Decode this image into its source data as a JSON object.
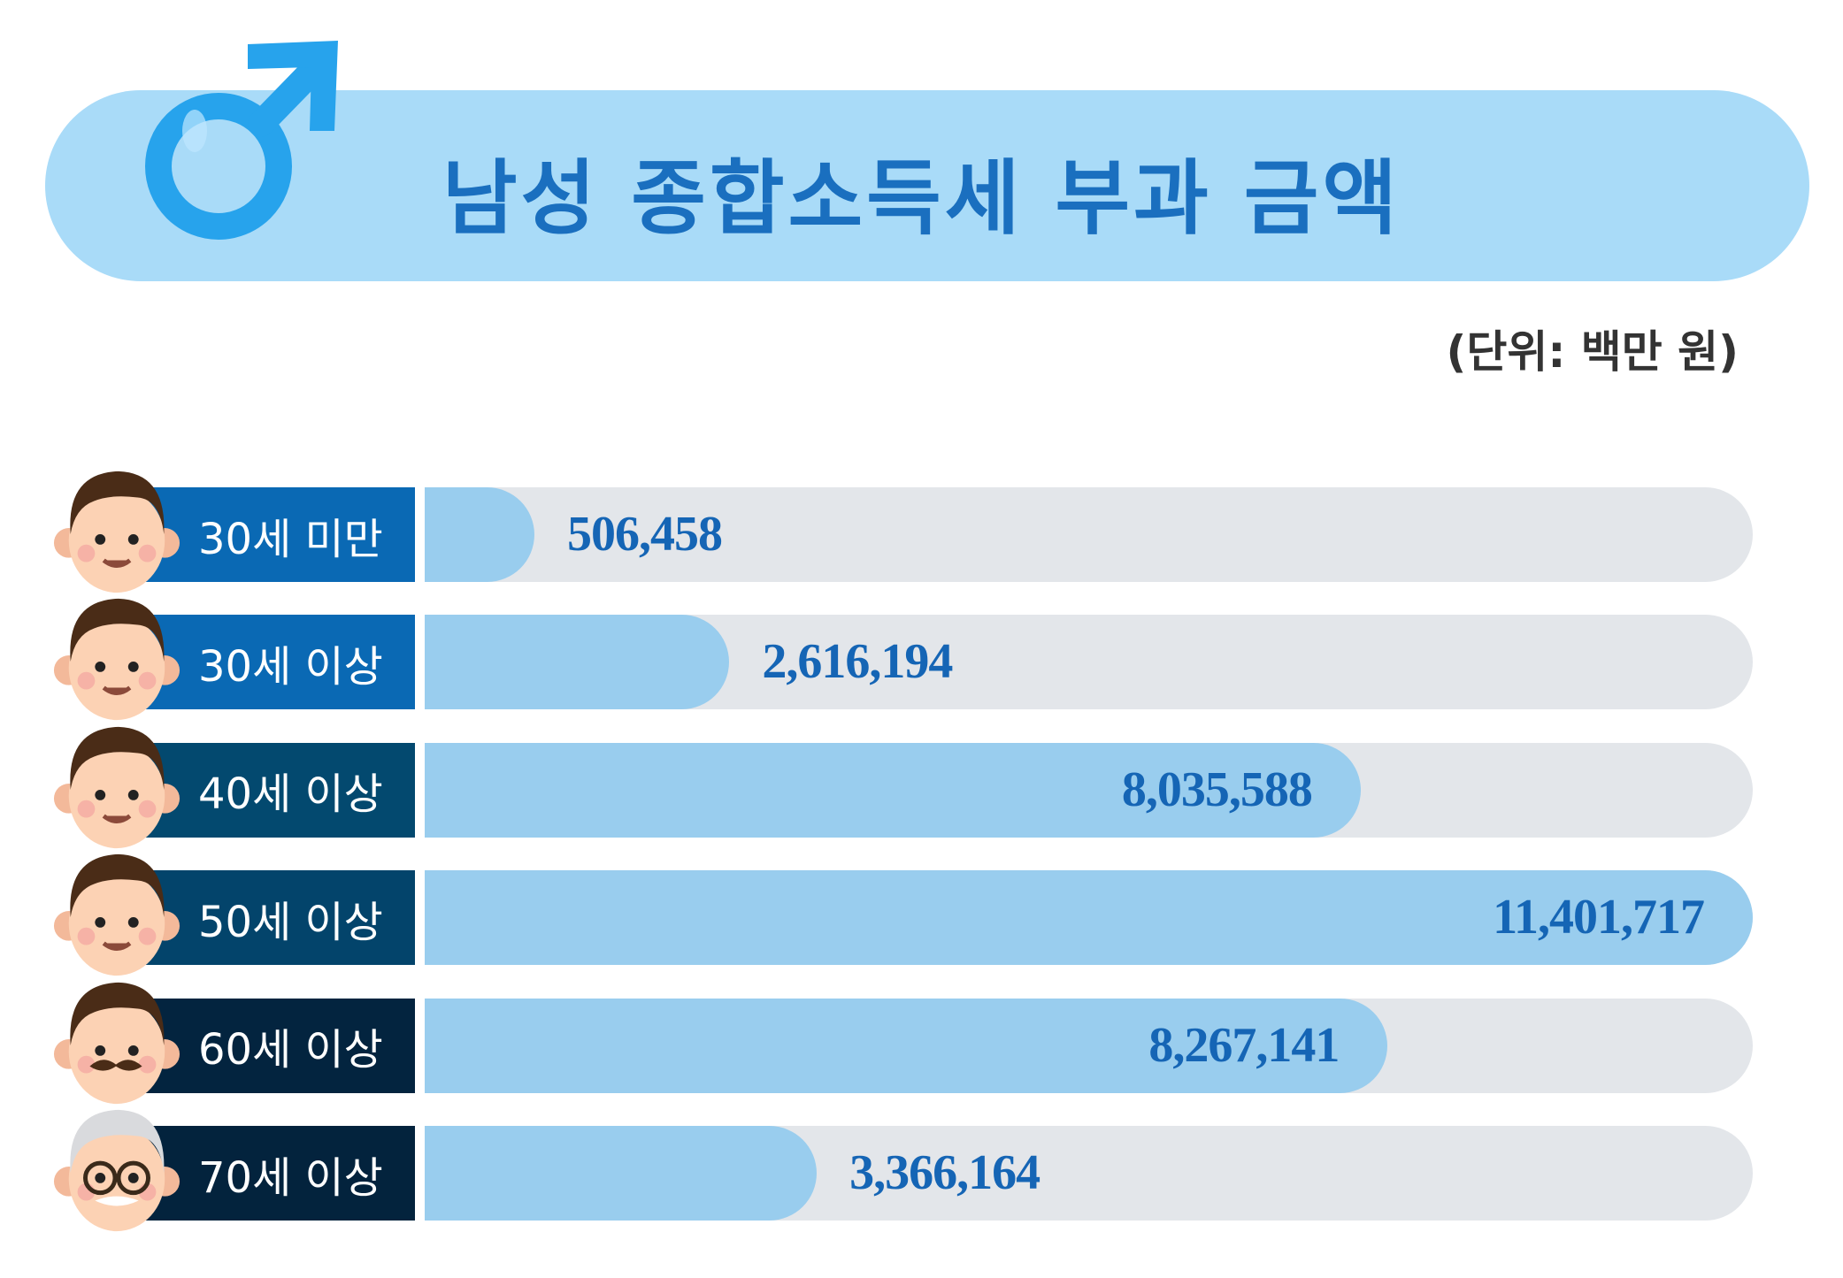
{
  "header": {
    "title": "남성 종합소득세 부과 금액",
    "icon": "male-symbol-icon"
  },
  "unit": "(단위: 백만 원)",
  "colors": {
    "header_bg": "#a9dbf8",
    "title": "#1a6fbf",
    "track": "#e3e6ea",
    "fill": "#99cdee",
    "value": "#1565b5"
  },
  "chart_data": {
    "type": "bar",
    "orientation": "horizontal",
    "title": "남성 종합소득세 부과 금액",
    "unit": "(단위: 백만 원)",
    "categories": [
      "30세 미만",
      "30세 이상",
      "40세 이상",
      "50세 이상",
      "60세 이상",
      "70세 이상"
    ],
    "values": [
      506458,
      2616194,
      8035588,
      11401717,
      8267141,
      3366164
    ],
    "value_labels": [
      "506,458",
      "2,616,194",
      "8,035,588",
      "11,401,717",
      "8,267,141",
      "3,366,164"
    ],
    "label_colors": [
      "#0a69b4",
      "#0a69b4",
      "#03496f",
      "#03446b",
      "#03243f",
      "#03233d"
    ],
    "face_icons": [
      "young-boy-face-icon",
      "boy-bangs-face-icon",
      "man-face-icon",
      "middle-aged-man-face-icon",
      "mustache-man-face-icon",
      "elderly-man-glasses-face-icon"
    ],
    "grid": false
  }
}
